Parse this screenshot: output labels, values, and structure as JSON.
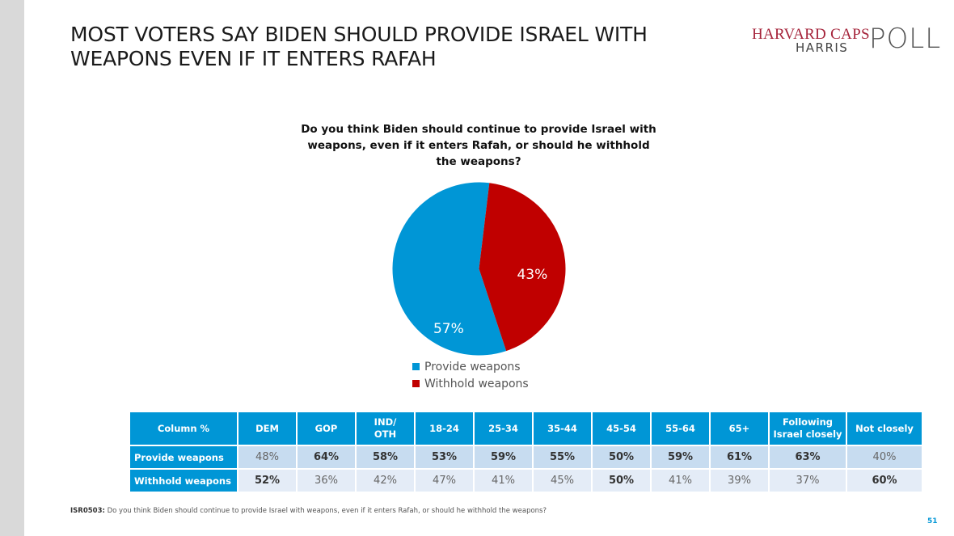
{
  "slide": {
    "title_lines": [
      "MOST VOTERS SAY BIDEN SHOULD PROVIDE ISRAEL WITH",
      "WEAPONS EVEN IF IT ENTERS RAFAH"
    ],
    "page_number": "51"
  },
  "logo": {
    "line1": "HARVARD CAPS",
    "line2": "HARRIS",
    "mark": "POLL"
  },
  "colors": {
    "provide": "#0096d6",
    "withhold": "#c00000",
    "header": "#0096d6"
  },
  "chart_data": {
    "type": "pie",
    "title_lines": [
      "Do you think Biden should continue to provide Israel with",
      "weapons, even if it enters Rafah, or should he withhold",
      "the weapons?"
    ],
    "categories": [
      "Provide weapons",
      "Withhold weapons"
    ],
    "values": [
      57,
      43
    ],
    "labels": [
      "57%",
      "43%"
    ],
    "colors": [
      "#0096d6",
      "#c00000"
    ],
    "legend_position": "bottom"
  },
  "table": {
    "headers": [
      [
        "Column %"
      ],
      [
        "DEM"
      ],
      [
        "GOP"
      ],
      [
        "IND/",
        "OTH"
      ],
      [
        "18-24"
      ],
      [
        "25-34"
      ],
      [
        "35-44"
      ],
      [
        "45-54"
      ],
      [
        "55-64"
      ],
      [
        "65+"
      ],
      [
        "Following",
        "Israel closely"
      ],
      [
        "Not closely"
      ]
    ],
    "rows": [
      {
        "label": "Provide weapons",
        "values": [
          "48%",
          "64%",
          "58%",
          "53%",
          "59%",
          "55%",
          "50%",
          "59%",
          "61%",
          "63%",
          "40%"
        ],
        "bold": [
          false,
          true,
          true,
          true,
          true,
          true,
          true,
          true,
          true,
          true,
          false
        ]
      },
      {
        "label": "Withhold weapons",
        "values": [
          "52%",
          "36%",
          "42%",
          "47%",
          "41%",
          "45%",
          "50%",
          "41%",
          "39%",
          "37%",
          "60%"
        ],
        "bold": [
          true,
          false,
          false,
          false,
          false,
          false,
          true,
          false,
          false,
          false,
          true
        ]
      }
    ]
  },
  "footnote": {
    "code": "ISR0503:",
    "text": " Do you think Biden should continue to provide Israel with weapons, even if it enters Rafah, or should he withhold the weapons?"
  }
}
